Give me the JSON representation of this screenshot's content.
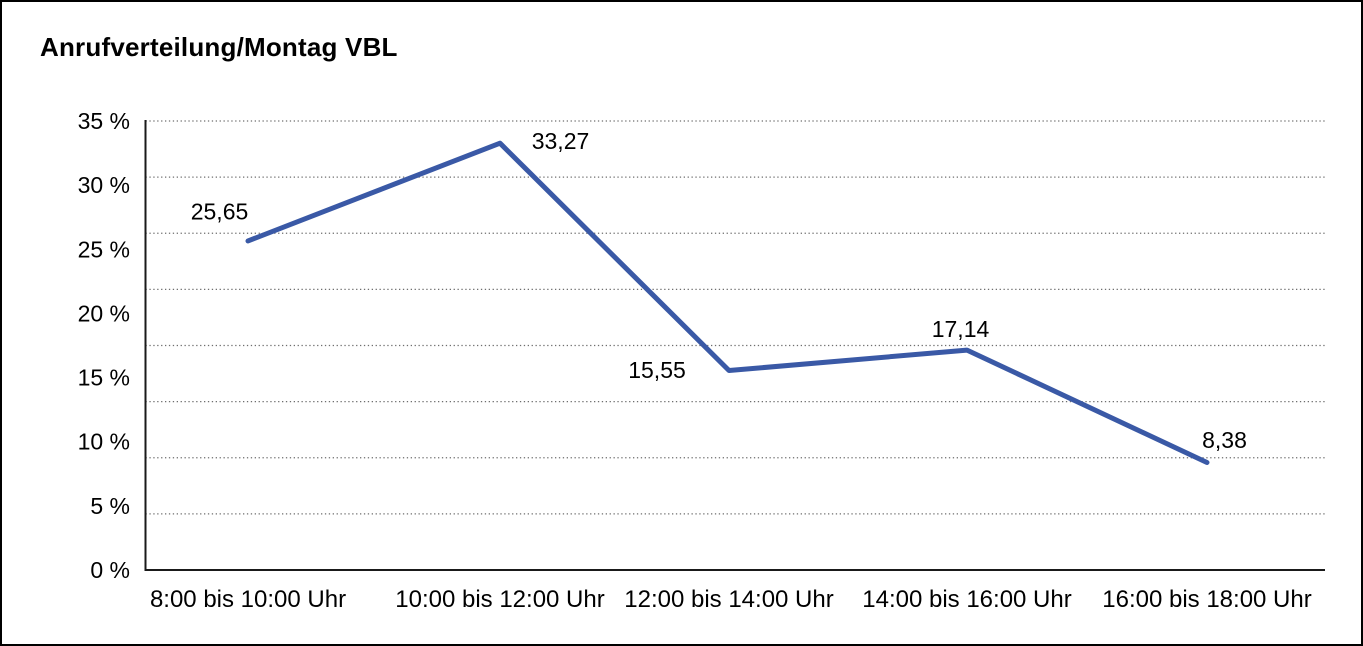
{
  "window": {
    "background": "#ffffff",
    "border_color": "#000000"
  },
  "chart_data": {
    "type": "line",
    "title": "Anrufverteilung/Montag VBL",
    "categories": [
      "8:00 bis 10:00 Uhr",
      "10:00 bis 12:00 Uhr",
      "12:00 bis 14:00 Uhr",
      "14:00 bis 16:00 Uhr",
      "16:00 bis 18:00 Uhr"
    ],
    "series": [
      {
        "values": [
          25.65,
          33.27,
          15.55,
          17.14,
          8.38
        ],
        "color": "#3A59A6"
      }
    ],
    "data_labels": [
      "25,65",
      "33,27",
      "15,55",
      "17,14",
      "8,38"
    ],
    "xlabel": "",
    "ylabel": "",
    "ylim": [
      0,
      35
    ],
    "ytick_step": 5,
    "ytick_labels_top_to_bottom": [
      "35 %",
      "30 %",
      "25 %",
      "20 %",
      "15 %",
      "10 %",
      "5 %",
      "0 %"
    ],
    "grid": "horizontal-dotted",
    "gridline_intervals": 8,
    "markers": "none",
    "legend": "none",
    "axis_color": "#1a1a1a",
    "gridline_color": "#6e6e6e"
  }
}
